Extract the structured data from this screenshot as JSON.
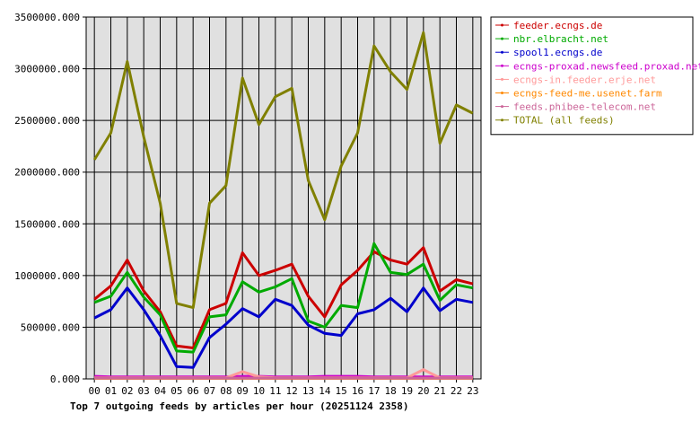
{
  "chart_data": {
    "type": "line",
    "title": "Top 7 outgoing feeds by articles per hour (20251124 2358)",
    "xlabel": "",
    "ylabel": "",
    "categories": [
      "00",
      "01",
      "02",
      "03",
      "04",
      "05",
      "06",
      "07",
      "08",
      "09",
      "10",
      "11",
      "12",
      "13",
      "14",
      "15",
      "16",
      "17",
      "18",
      "19",
      "20",
      "21",
      "22",
      "23"
    ],
    "ylim": [
      0,
      3500000
    ],
    "yticks": [
      "0.000",
      "500000.000",
      "1000000.000",
      "1500000.000",
      "2000000.000",
      "2500000.000",
      "3000000.000",
      "3500000.000"
    ],
    "grid": true,
    "legend_position": "top-right",
    "series": [
      {
        "name": "feeder.ecngs.de",
        "color": "#cc0000",
        "values": [
          770000,
          900000,
          1150000,
          850000,
          650000,
          320000,
          300000,
          670000,
          730000,
          1220000,
          1000000,
          1050000,
          1110000,
          800000,
          600000,
          910000,
          1050000,
          1230000,
          1150000,
          1110000,
          1270000,
          850000,
          960000,
          920000
        ]
      },
      {
        "name": "nbr.elbracht.net",
        "color": "#00aa00",
        "values": [
          740000,
          800000,
          1030000,
          790000,
          620000,
          270000,
          260000,
          600000,
          620000,
          940000,
          840000,
          890000,
          970000,
          560000,
          500000,
          710000,
          690000,
          1310000,
          1030000,
          1010000,
          1110000,
          760000,
          910000,
          880000
        ]
      },
      {
        "name": "spool1.ecngs.de",
        "color": "#0000cc",
        "values": [
          590000,
          670000,
          880000,
          670000,
          420000,
          120000,
          110000,
          400000,
          530000,
          680000,
          600000,
          770000,
          710000,
          520000,
          440000,
          420000,
          630000,
          670000,
          780000,
          650000,
          880000,
          660000,
          770000,
          740000
        ]
      },
      {
        "name": "ecngs-proxad.newsfeed.proxad.net",
        "color": "#cc00cc",
        "values": [
          25000,
          20000,
          20000,
          20000,
          20000,
          20000,
          20000,
          20000,
          20000,
          25000,
          25000,
          20000,
          20000,
          20000,
          25000,
          25000,
          25000,
          20000,
          20000,
          20000,
          20000,
          20000,
          20000,
          20000
        ]
      },
      {
        "name": "ecngs-in.feeder.erje.net",
        "color": "#ff9999",
        "values": [
          10000,
          10000,
          10000,
          10000,
          10000,
          10000,
          10000,
          10000,
          10000,
          70000,
          20000,
          10000,
          10000,
          10000,
          10000,
          10000,
          10000,
          10000,
          10000,
          10000,
          90000,
          10000,
          10000,
          10000
        ]
      },
      {
        "name": "ecngs-feed-me.usenet.farm",
        "color": "#ff8800",
        "values": [
          5000,
          5000,
          5000,
          5000,
          5000,
          5000,
          5000,
          5000,
          5000,
          5000,
          5000,
          5000,
          5000,
          5000,
          5000,
          5000,
          5000,
          5000,
          5000,
          5000,
          5000,
          5000,
          5000,
          5000
        ]
      },
      {
        "name": "feeds.phibee-telecom.net",
        "color": "#cc6699",
        "values": [
          8000,
          8000,
          8000,
          8000,
          8000,
          8000,
          8000,
          8000,
          8000,
          8000,
          8000,
          8000,
          8000,
          8000,
          8000,
          8000,
          8000,
          8000,
          8000,
          8000,
          8000,
          8000,
          8000,
          8000
        ]
      },
      {
        "name": "TOTAL (all feeds)",
        "color": "#808000",
        "values": [
          2120000,
          2380000,
          3070000,
          2340000,
          1700000,
          730000,
          690000,
          1700000,
          1870000,
          2910000,
          2460000,
          2730000,
          2810000,
          1920000,
          1540000,
          2060000,
          2380000,
          3220000,
          2970000,
          2800000,
          3350000,
          2280000,
          2650000,
          2570000
        ]
      }
    ]
  }
}
